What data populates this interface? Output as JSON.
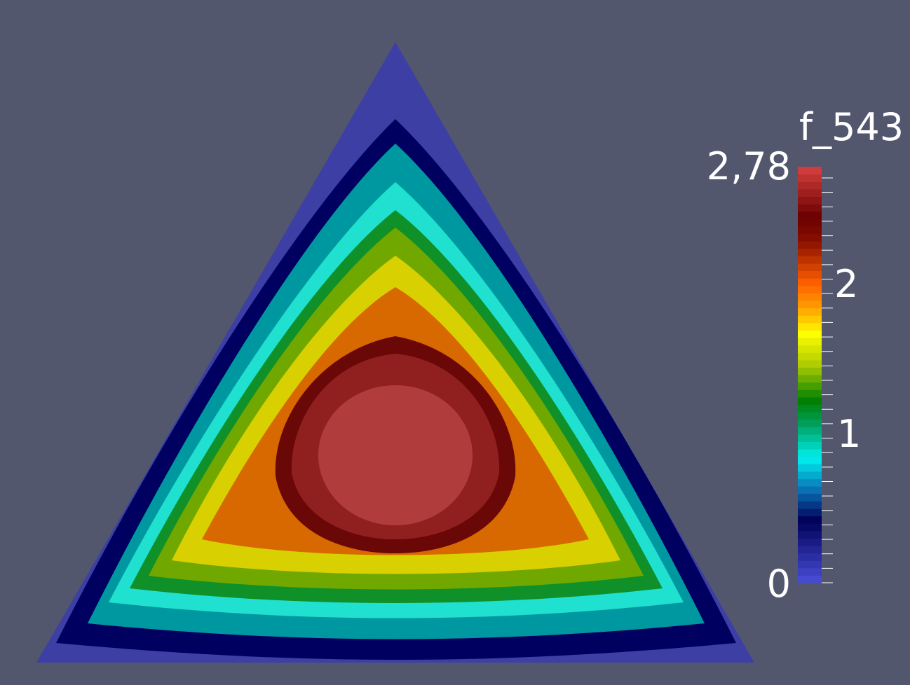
{
  "scalar_bar": {
    "title": "f_543",
    "range": [
      0,
      2.78
    ],
    "labels": [
      {
        "text": "2,78",
        "value": 2.78
      },
      {
        "text": "2",
        "value": 2
      },
      {
        "text": "1",
        "value": 1
      },
      {
        "text": "0",
        "value": 0
      }
    ],
    "num_colors": 56,
    "colormap_stops": [
      {
        "t": 0.0,
        "color": "#4a4fd8"
      },
      {
        "t": 0.15,
        "color": "#000058"
      },
      {
        "t": 0.22,
        "color": "#0a6ab0"
      },
      {
        "t": 0.3,
        "color": "#00f0f0"
      },
      {
        "t": 0.38,
        "color": "#00a060"
      },
      {
        "t": 0.44,
        "color": "#008000"
      },
      {
        "t": 0.52,
        "color": "#a8c800"
      },
      {
        "t": 0.6,
        "color": "#ffff00"
      },
      {
        "t": 0.66,
        "color": "#ffa000"
      },
      {
        "t": 0.72,
        "color": "#ff6000"
      },
      {
        "t": 0.82,
        "color": "#8a1000"
      },
      {
        "t": 0.88,
        "color": "#6a0000"
      },
      {
        "t": 1.0,
        "color": "#d84040"
      }
    ]
  },
  "background_color": "#52576e"
}
